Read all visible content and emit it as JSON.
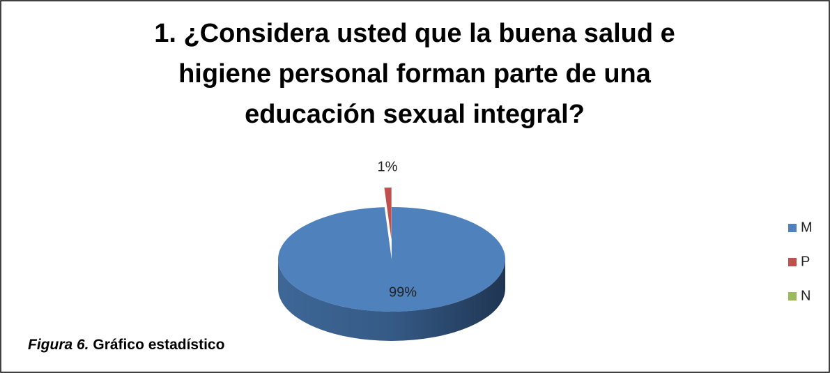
{
  "chart_data": {
    "type": "pie",
    "title": [
      "1. ¿Considera usted que la buena salud e",
      "higiene personal forman parte de una",
      "educación sexual integral?"
    ],
    "categories": [
      "M",
      "P",
      "N"
    ],
    "values": [
      99,
      1,
      0
    ],
    "value_labels": [
      "99%",
      "1%",
      null
    ],
    "colors": [
      "#4f81bd",
      "#c0504d",
      "#9bbb59"
    ],
    "legend": "right",
    "caption": {
      "label": "Figura 6.",
      "text": "Gráfico estadístico"
    }
  }
}
